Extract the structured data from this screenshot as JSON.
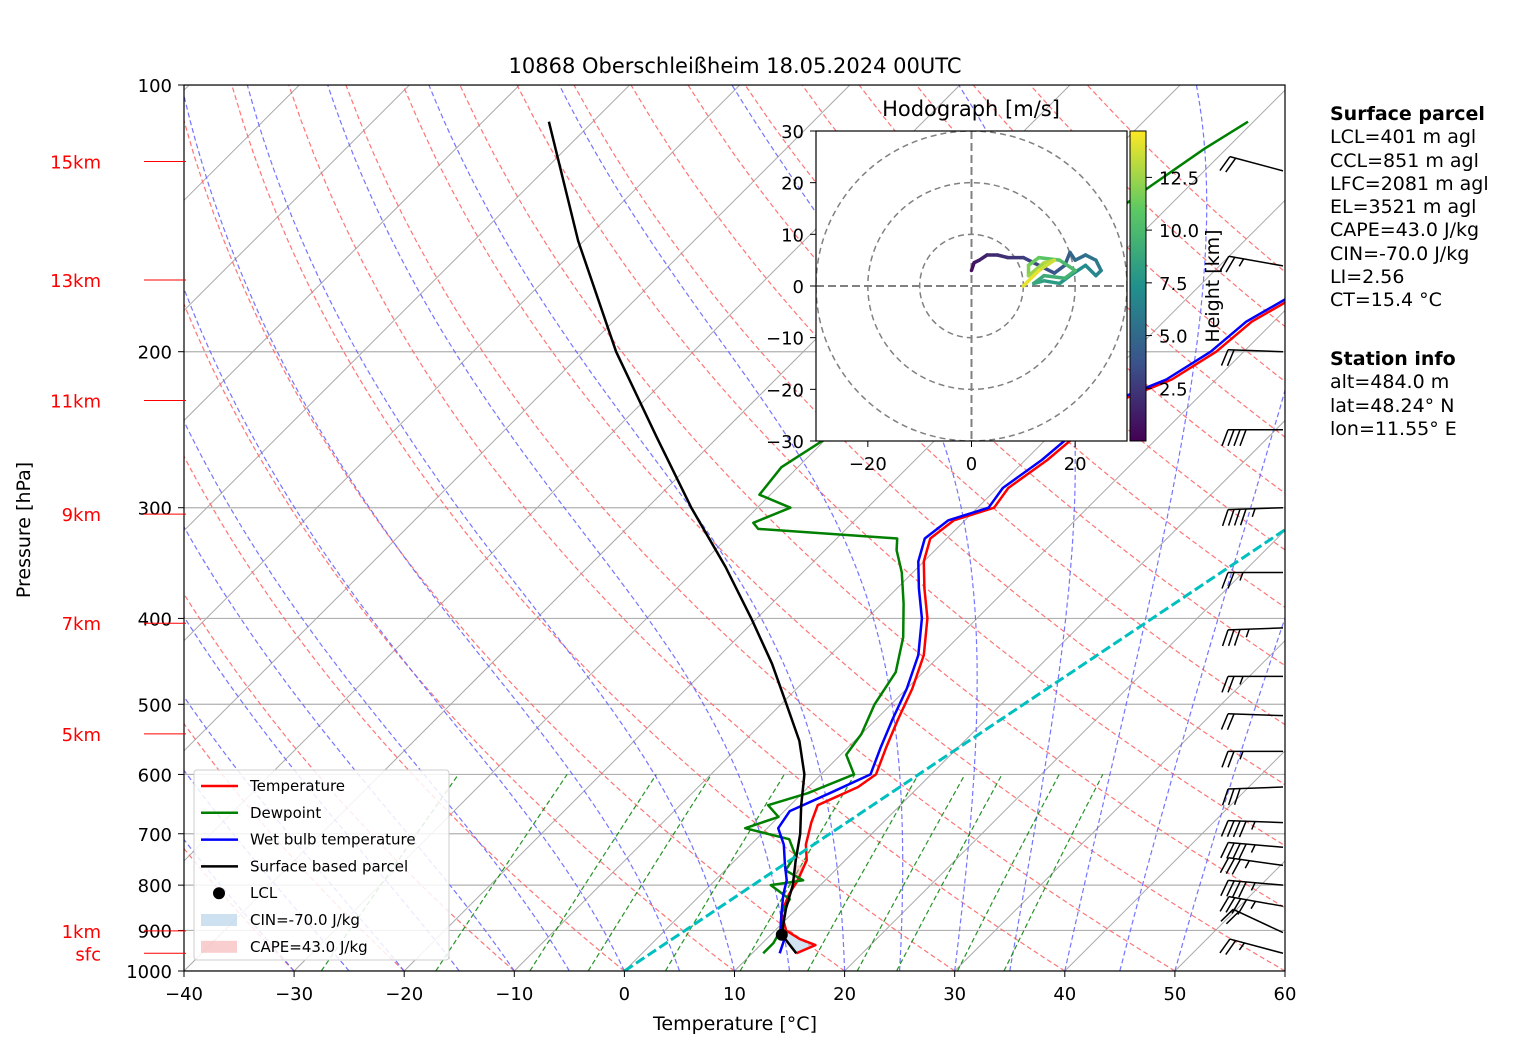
{
  "chart_data": [
    {
      "type": "line",
      "subtype": "skew-T log-p diagram",
      "title": "10868 Oberschleißheim 18.05.2024 00UTC",
      "xlabel": "Temperature [°C]",
      "ylabel": "Pressure [hPa]",
      "xlim": [
        -40,
        60
      ],
      "ylim": [
        1000,
        100
      ],
      "yscale": "log",
      "grid": true,
      "x_ticks": [
        "−40",
        "−30",
        "−20",
        "−10",
        "0",
        "10",
        "20",
        "30",
        "40",
        "50",
        "60"
      ],
      "y_ticks": [
        {
          "p": 100,
          "label": "100"
        },
        {
          "p": 200,
          "label": "200"
        },
        {
          "p": 300,
          "label": "300"
        },
        {
          "p": 400,
          "label": "400"
        },
        {
          "p": 500,
          "label": "500"
        },
        {
          "p": 600,
          "label": "600"
        },
        {
          "p": 700,
          "label": "700"
        },
        {
          "p": 800,
          "label": "800"
        },
        {
          "p": 900,
          "label": "900"
        },
        {
          "p": 1000,
          "label": "1000"
        }
      ],
      "height_labels": [
        {
          "label": "15km",
          "p": 122
        },
        {
          "label": "13km",
          "p": 166
        },
        {
          "label": "11km",
          "p": 227
        },
        {
          "label": "9km",
          "p": 305
        },
        {
          "label": "7km",
          "p": 405
        },
        {
          "label": "5km",
          "p": 540
        },
        {
          "label": "1km",
          "p": 901
        },
        {
          "label": "sfc",
          "p": 955
        }
      ],
      "height_label_color": "#ff0000",
      "series": [
        {
          "name": "Temperature",
          "color": "#ff0000",
          "points": [
            [
              14.0,
              955
            ],
            [
              15.0,
              935
            ],
            [
              13.0,
              920
            ],
            [
              11.0,
              900
            ],
            [
              9.0,
              860
            ],
            [
              8.0,
              820
            ],
            [
              7.5,
              790
            ],
            [
              6.5,
              750
            ],
            [
              5.0,
              720
            ],
            [
              3.5,
              680
            ],
            [
              2.5,
              650
            ],
            [
              4.5,
              620
            ],
            [
              5.0,
              600
            ],
            [
              3.5,
              560
            ],
            [
              2.0,
              520
            ],
            [
              0.5,
              480
            ],
            [
              -1.5,
              440
            ],
            [
              -4.5,
              400
            ],
            [
              -7.5,
              370
            ],
            [
              -10.0,
              345
            ],
            [
              -11.5,
              325
            ],
            [
              -11.0,
              310
            ],
            [
              -8.5,
              300
            ],
            [
              -9.0,
              285
            ],
            [
              -8.0,
              265
            ],
            [
              -7.5,
              245
            ],
            [
              -7.0,
              228
            ],
            [
              -4.0,
              215
            ],
            [
              -2.5,
              200
            ],
            [
              -2.0,
              185
            ],
            [
              0.5,
              168
            ],
            [
              2.0,
              150
            ],
            [
              4.5,
              135
            ],
            [
              6.0,
              125
            ],
            [
              7.5,
              118
            ],
            [
              8.0,
              112
            ],
            [
              8.5,
              105
            ]
          ]
        },
        {
          "name": "Dewpoint",
          "color": "#008000",
          "points": [
            [
              11.0,
              955
            ],
            [
              11.0,
              930
            ],
            [
              10.5,
              900
            ],
            [
              9.0,
              860
            ],
            [
              8.5,
              830
            ],
            [
              5.5,
              800
            ],
            [
              8.0,
              790
            ],
            [
              5.5,
              770
            ],
            [
              5.0,
              740
            ],
            [
              3.0,
              710
            ],
            [
              -2.0,
              690
            ],
            [
              0.0,
              670
            ],
            [
              -2.0,
              650
            ],
            [
              0.5,
              630
            ],
            [
              3.0,
              600
            ],
            [
              0.5,
              570
            ],
            [
              0.0,
              540
            ],
            [
              -1.5,
              500
            ],
            [
              -2.5,
              460
            ],
            [
              -5.0,
              420
            ],
            [
              -8.0,
              385
            ],
            [
              -11.0,
              355
            ],
            [
              -13.5,
              335
            ],
            [
              -14.5,
              325
            ],
            [
              -28.0,
              317
            ],
            [
              -29.0,
              312
            ],
            [
              -27.0,
              300
            ],
            [
              -31.0,
              290
            ],
            [
              -31.5,
              270
            ],
            [
              -30.0,
              250
            ],
            [
              -30.0,
              235
            ],
            [
              -28.0,
              225
            ],
            [
              -30.5,
              218
            ],
            [
              -31.0,
              200
            ],
            [
              -30.0,
              180
            ],
            [
              -27.0,
              160
            ],
            [
              -25.0,
              145
            ],
            [
              -23.5,
              130
            ],
            [
              -22.0,
              118
            ],
            [
              -20.5,
              110
            ]
          ]
        },
        {
          "name": "Wet bulb temperature",
          "color": "#0000ff",
          "points": [
            [
              12.5,
              955
            ],
            [
              12.0,
              935
            ],
            [
              11.5,
              915
            ],
            [
              10.5,
              900
            ],
            [
              9.0,
              860
            ],
            [
              7.5,
              820
            ],
            [
              6.5,
              790
            ],
            [
              5.0,
              760
            ],
            [
              3.0,
              720
            ],
            [
              1.0,
              690
            ],
            [
              0.5,
              660
            ],
            [
              2.5,
              630
            ],
            [
              4.5,
              600
            ],
            [
              3.0,
              560
            ],
            [
              1.5,
              520
            ],
            [
              0.0,
              480
            ],
            [
              -2.0,
              440
            ],
            [
              -5.0,
              400
            ],
            [
              -8.0,
              370
            ],
            [
              -10.5,
              345
            ],
            [
              -12.0,
              325
            ],
            [
              -11.5,
              310
            ],
            [
              -9.0,
              300
            ],
            [
              -9.5,
              285
            ],
            [
              -8.5,
              265
            ],
            [
              -8.0,
              245
            ],
            [
              -7.5,
              228
            ],
            [
              -4.5,
              215
            ],
            [
              -3.0,
              200
            ],
            [
              -2.5,
              185
            ],
            [
              0.0,
              168
            ],
            [
              1.5,
              150
            ],
            [
              4.0,
              135
            ],
            [
              5.5,
              125
            ],
            [
              7.0,
              118
            ],
            [
              7.5,
              112
            ],
            [
              8.0,
              105
            ]
          ]
        },
        {
          "name": "Surface based parcel",
          "color": "#000000",
          "points": [
            [
              14.0,
              955
            ],
            [
              11.0,
              910
            ],
            [
              10.0,
              880
            ],
            [
              9.0,
              850
            ],
            [
              7.5,
              800
            ],
            [
              5.5,
              750
            ],
            [
              3.5,
              700
            ],
            [
              1.0,
              650
            ],
            [
              -1.5,
              600
            ],
            [
              -5.0,
              550
            ],
            [
              -9.5,
              500
            ],
            [
              -14.5,
              450
            ],
            [
              -20.5,
              400
            ],
            [
              -27.5,
              350
            ],
            [
              -36.0,
              300
            ],
            [
              -45.5,
              250
            ],
            [
              -57.0,
              200
            ],
            [
              -70.5,
              150
            ],
            [
              -84.0,
              110
            ]
          ]
        },
        {
          "name": "LCL",
          "type": "marker",
          "color": "#000000",
          "points": [
            [
              11.0,
              910
            ]
          ]
        },
        {
          "name": "Reference line",
          "color": "#00bfbf",
          "style": "dashed",
          "points": [
            [
              0.0,
              1000
            ],
            [
              40.0,
              100
            ]
          ]
        }
      ],
      "shaded_areas": [
        {
          "name": "CIN=-70.0 J/kg",
          "color": "#a6c8e3"
        },
        {
          "name": "CAPE=43.0 J/kg",
          "color": "#f4a6a6"
        }
      ],
      "legend": {
        "position": "lower-left",
        "entries": [
          {
            "label": "Temperature",
            "kind": "line",
            "color": "#ff0000"
          },
          {
            "label": "Dewpoint",
            "kind": "line",
            "color": "#008000"
          },
          {
            "label": "Wet bulb temperature",
            "kind": "line",
            "color": "#0000ff"
          },
          {
            "label": "Surface based parcel",
            "kind": "line",
            "color": "#000000"
          },
          {
            "label": "LCL",
            "kind": "dot",
            "color": "#000000"
          },
          {
            "label": "CIN=-70.0 J/kg",
            "kind": "patch",
            "color": "#a6c8e3"
          },
          {
            "label": "CAPE=43.0 J/kg",
            "kind": "patch",
            "color": "#f4a6a6"
          }
        ]
      },
      "wind_barbs": [
        {
          "p": 955,
          "speed_kt": 25,
          "dir_deg": 255
        },
        {
          "p": 905,
          "speed_kt": 20,
          "dir_deg": 245
        },
        {
          "p": 845,
          "speed_kt": 45,
          "dir_deg": 260
        },
        {
          "p": 800,
          "speed_kt": 45,
          "dir_deg": 265
        },
        {
          "p": 760,
          "speed_kt": 35,
          "dir_deg": 262
        },
        {
          "p": 725,
          "speed_kt": 45,
          "dir_deg": 265
        },
        {
          "p": 680,
          "speed_kt": 45,
          "dir_deg": 268
        },
        {
          "p": 620,
          "speed_kt": 30,
          "dir_deg": 272
        },
        {
          "p": 565,
          "speed_kt": 25,
          "dir_deg": 270
        },
        {
          "p": 515,
          "speed_kt": 20,
          "dir_deg": 268
        },
        {
          "p": 465,
          "speed_kt": 25,
          "dir_deg": 270
        },
        {
          "p": 410,
          "speed_kt": 35,
          "dir_deg": 272
        },
        {
          "p": 355,
          "speed_kt": 25,
          "dir_deg": 270
        },
        {
          "p": 300,
          "speed_kt": 45,
          "dir_deg": 272
        },
        {
          "p": 245,
          "speed_kt": 40,
          "dir_deg": 270
        },
        {
          "p": 200,
          "speed_kt": 20,
          "dir_deg": 268
        },
        {
          "p": 160,
          "speed_kt": 25,
          "dir_deg": 260
        },
        {
          "p": 125,
          "speed_kt": 20,
          "dir_deg": 255
        }
      ]
    },
    {
      "type": "line",
      "subtype": "hodograph",
      "title": "Hodograph [m/s]",
      "xlim": [
        -30,
        30
      ],
      "ylim": [
        -30,
        30
      ],
      "grid": true,
      "x_ticks": [
        "−20",
        "0",
        "20"
      ],
      "y_ticks": [
        "30",
        "20",
        "10",
        "0",
        "−10",
        "−20",
        "−30"
      ],
      "rings": [
        10,
        20,
        30
      ],
      "colorbar": {
        "label": "Height [km]",
        "range": [
          0,
          14.7
        ],
        "ticks": [
          "2.5",
          "5.0",
          "7.5",
          "10.0",
          "12.5"
        ],
        "colormap": "viridis"
      },
      "points": [
        {
          "u": 0.0,
          "v": 3.0,
          "h": 0.5
        },
        {
          "u": 0.5,
          "v": 4.5,
          "h": 0.9
        },
        {
          "u": 1.5,
          "v": 5.0,
          "h": 1.2
        },
        {
          "u": 3.0,
          "v": 6.0,
          "h": 1.5
        },
        {
          "u": 5.0,
          "v": 6.0,
          "h": 1.9
        },
        {
          "u": 7.0,
          "v": 5.5,
          "h": 2.2
        },
        {
          "u": 10.0,
          "v": 5.5,
          "h": 2.6
        },
        {
          "u": 12.0,
          "v": 4.5,
          "h": 3.0
        },
        {
          "u": 14.0,
          "v": 3.5,
          "h": 3.4
        },
        {
          "u": 16.0,
          "v": 2.5,
          "h": 3.8
        },
        {
          "u": 18.0,
          "v": 4.0,
          "h": 4.2
        },
        {
          "u": 19.0,
          "v": 6.5,
          "h": 4.6
        },
        {
          "u": 20.0,
          "v": 5.0,
          "h": 5.0
        },
        {
          "u": 22.0,
          "v": 6.0,
          "h": 5.4
        },
        {
          "u": 24.0,
          "v": 5.0,
          "h": 5.8
        },
        {
          "u": 25.0,
          "v": 3.0,
          "h": 6.2
        },
        {
          "u": 24.0,
          "v": 2.0,
          "h": 6.6
        },
        {
          "u": 22.0,
          "v": 4.0,
          "h": 7.0
        },
        {
          "u": 19.0,
          "v": 2.0,
          "h": 7.4
        },
        {
          "u": 17.0,
          "v": 0.5,
          "h": 7.8
        },
        {
          "u": 14.0,
          "v": 1.0,
          "h": 8.2
        },
        {
          "u": 12.0,
          "v": 0.5,
          "h": 8.6
        },
        {
          "u": 14.0,
          "v": 2.0,
          "h": 9.0
        },
        {
          "u": 18.0,
          "v": 1.5,
          "h": 9.4
        },
        {
          "u": 20.0,
          "v": 3.0,
          "h": 9.8
        },
        {
          "u": 17.0,
          "v": 5.0,
          "h": 10.3
        },
        {
          "u": 13.0,
          "v": 5.5,
          "h": 10.9
        },
        {
          "u": 11.0,
          "v": 4.0,
          "h": 11.5
        },
        {
          "u": 11.0,
          "v": 2.0,
          "h": 12.1
        },
        {
          "u": 14.0,
          "v": 4.5,
          "h": 12.7
        },
        {
          "u": 16.0,
          "v": 5.0,
          "h": 13.3
        },
        {
          "u": 13.0,
          "v": 3.0,
          "h": 13.9
        },
        {
          "u": 10.0,
          "v": 0.0,
          "h": 14.5
        }
      ]
    }
  ],
  "surface_parcel": {
    "heading": "Surface parcel",
    "lines": [
      "LCL=401 m agl",
      "CCL=851 m agl",
      "LFC=2081 m agl",
      "EL=3521 m agl",
      "CAPE=43.0 J/kg",
      "CIN=-70.0 J/kg",
      "LI=2.56",
      "CT=15.4 °C"
    ]
  },
  "station_info": {
    "heading": "Station info",
    "lines": [
      "alt=484.0 m",
      "lat=48.24° N",
      "lon=11.55° E"
    ]
  }
}
